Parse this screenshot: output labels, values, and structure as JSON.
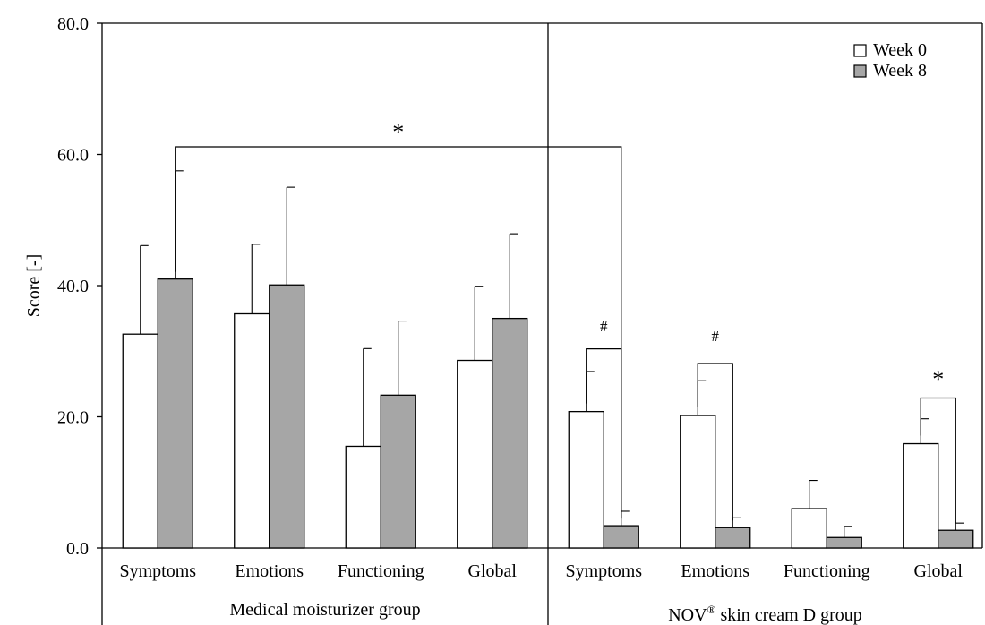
{
  "chart_data": {
    "type": "bar",
    "ylabel": "Score [-]",
    "ylim": [
      0,
      80
    ],
    "yticks": [
      "0.0",
      "20.0",
      "40.0",
      "60.0",
      "80.0"
    ],
    "grid": false,
    "legend_position": "top-right",
    "series": [
      {
        "name": "Week 0",
        "color": "#ffffff"
      },
      {
        "name": "Week 8",
        "color": "#a6a6a6"
      }
    ],
    "groups": [
      {
        "label": "Medical moisturizer group",
        "categories": [
          {
            "label": "Symptoms",
            "values": [
              32.6,
              41.0
            ],
            "errors": [
              13.5,
              16.5
            ]
          },
          {
            "label": "Emotions",
            "values": [
              35.7,
              40.1
            ],
            "errors": [
              10.6,
              14.9
            ]
          },
          {
            "label": "Functioning",
            "values": [
              15.5,
              23.3
            ],
            "errors": [
              14.9,
              11.3
            ]
          },
          {
            "label": "Global",
            "values": [
              28.6,
              35.0
            ],
            "errors": [
              11.3,
              12.9
            ]
          }
        ]
      },
      {
        "label_main": "NOV",
        "label_sup": "®",
        "label_rest": " skin cream D group",
        "categories": [
          {
            "label": "Symptoms",
            "values": [
              20.8,
              3.4
            ],
            "errors": [
              6.1,
              2.2
            ]
          },
          {
            "label": "Emotions",
            "values": [
              20.2,
              3.1
            ],
            "errors": [
              5.3,
              1.5
            ]
          },
          {
            "label": "Functioning",
            "values": [
              6.0,
              1.6
            ],
            "errors": [
              4.3,
              1.7
            ]
          },
          {
            "label": "Global",
            "values": [
              15.9,
              2.7
            ],
            "errors": [
              3.8,
              1.1
            ]
          }
        ]
      }
    ],
    "annotations": [
      {
        "text": "*",
        "between": "Medical moisturizer group Symptoms Week 8 vs NOV® skin cream D group Symptoms Week 8"
      },
      {
        "text": "#",
        "between": "NOV® skin cream D group Symptoms Week 0 vs Week 8"
      },
      {
        "text": "#",
        "between": "NOV® skin cream D group Emotions Week 0 vs Week 8"
      },
      {
        "text": "*",
        "between": "NOV® skin cream D group Global Week 0 vs Week 8"
      }
    ]
  }
}
